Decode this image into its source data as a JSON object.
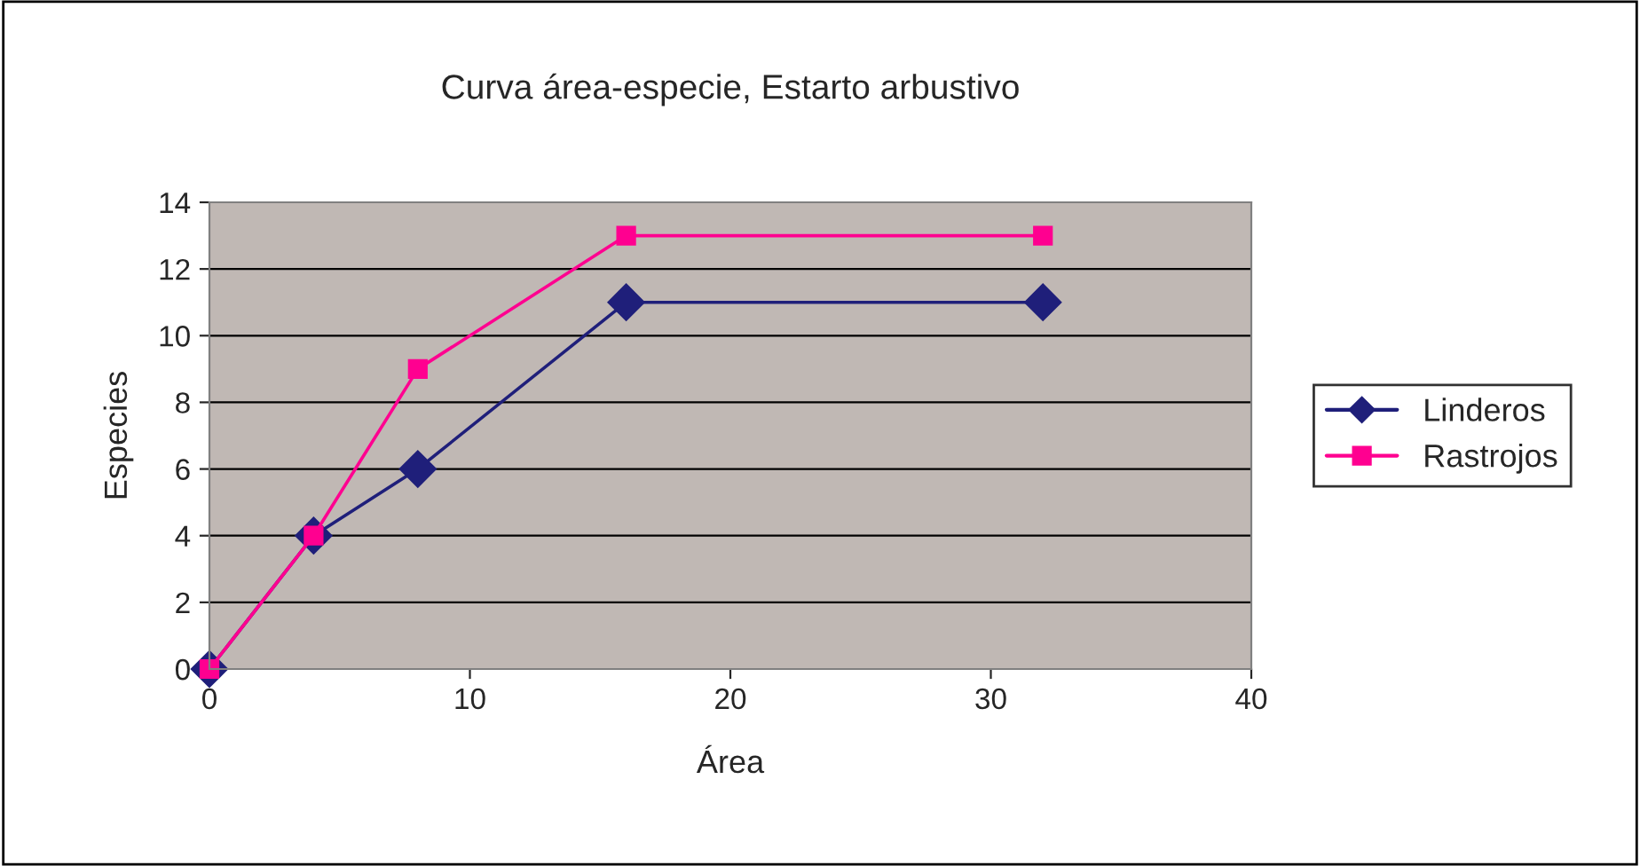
{
  "chart_data": {
    "type": "line",
    "title": "Curva área-especie, Estarto arbustivo",
    "xlabel": "Área",
    "ylabel": "Especies",
    "x": [
      0,
      4,
      8,
      16,
      32
    ],
    "series": [
      {
        "name": "Linderos",
        "color": "#1f1f7a",
        "marker": "diamond",
        "values": [
          0,
          4,
          6,
          11,
          11
        ]
      },
      {
        "name": "Rastrojos",
        "color": "#ff0090",
        "marker": "square",
        "values": [
          0,
          4,
          9,
          13,
          13
        ]
      }
    ],
    "xlim": [
      0,
      40
    ],
    "xticks": [
      0,
      10,
      20,
      30,
      40
    ],
    "ylim": [
      0,
      14
    ],
    "yticks": [
      0,
      2,
      4,
      6,
      8,
      10,
      12,
      14
    ],
    "grid": "y",
    "legend": "right",
    "line_style": "solid"
  }
}
